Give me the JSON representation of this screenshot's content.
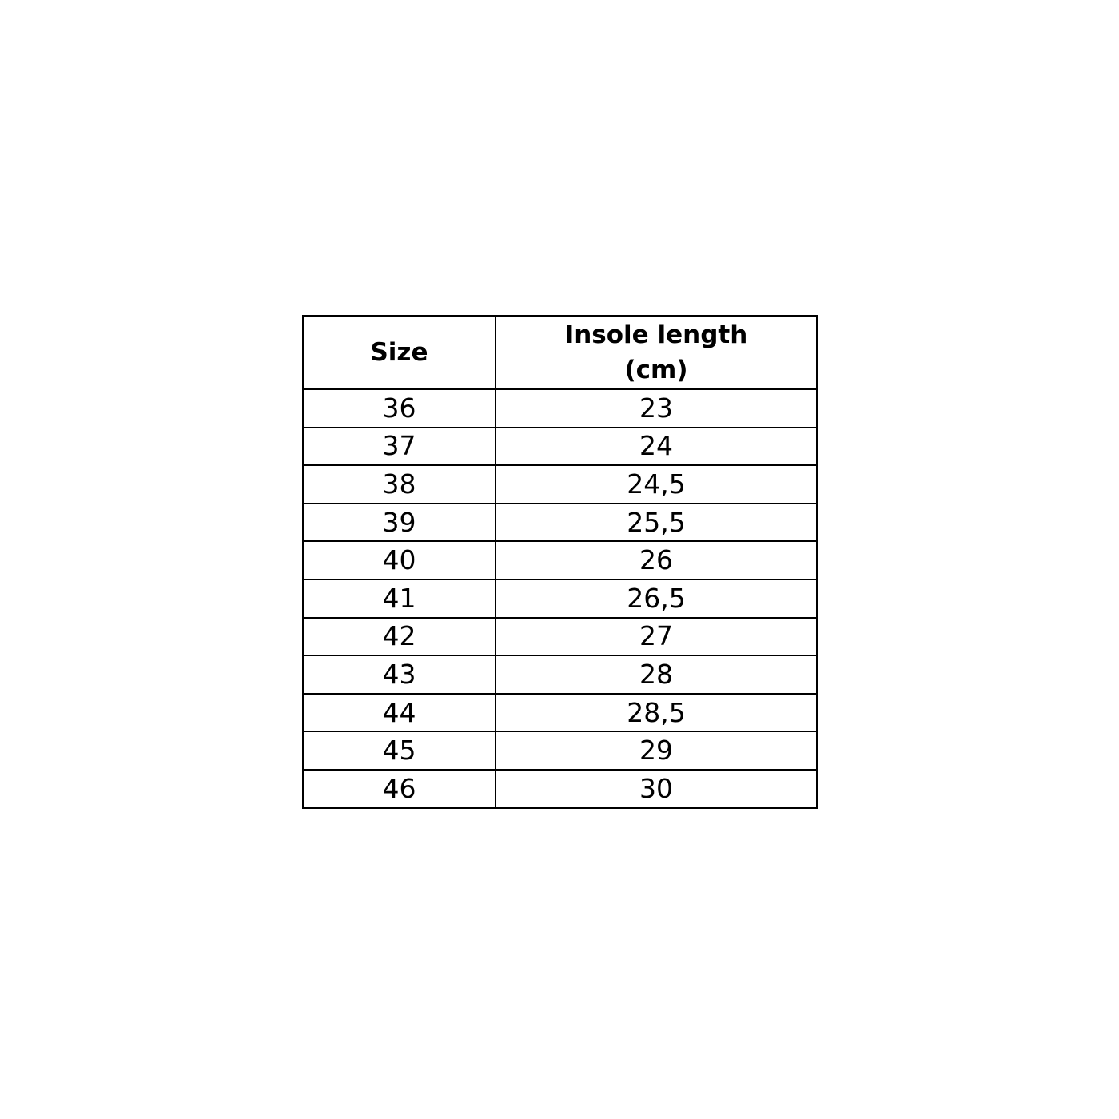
{
  "table": {
    "headers": [
      "Size",
      "Insole length (cm)"
    ],
    "rows": [
      [
        "36",
        "23"
      ],
      [
        "37",
        "24"
      ],
      [
        "38",
        "24,5"
      ],
      [
        "39",
        "25,5"
      ],
      [
        "40",
        "26"
      ],
      [
        "41",
        "26,5"
      ],
      [
        "42",
        "27"
      ],
      [
        "43",
        "28"
      ],
      [
        "44",
        "28,5"
      ],
      [
        "45",
        "29"
      ],
      [
        "46",
        "30"
      ]
    ]
  }
}
